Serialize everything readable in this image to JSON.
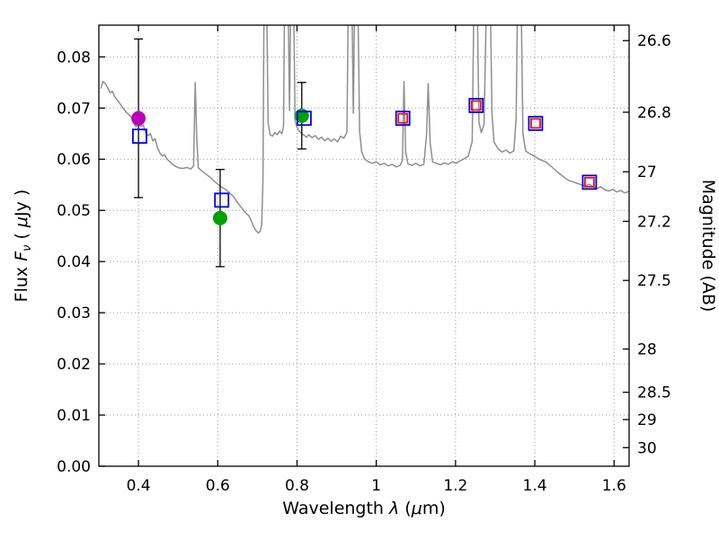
{
  "figure_name": "galaxy-sed-plot",
  "colors": {
    "spectrum": "#8f8f8f",
    "magenta_marker": "#bb00bb",
    "green_marker": "#00a000",
    "blue_square": "#0000ee",
    "red_square": "#ee1111",
    "errorbar": "#000000",
    "grid": "#9a9a9a",
    "frame": "#000000"
  },
  "chart_data": {
    "type": "line",
    "title": "",
    "xlim": [
      0.3,
      1.638
    ],
    "ylim": [
      0.0,
      0.0862
    ],
    "grid": "dotted",
    "xlabel_parts": [
      {
        "t": "Wavelength  ",
        "it": false,
        "sub": false
      },
      {
        "t": "λ",
        "it": true,
        "sub": false
      },
      {
        "t": " (",
        "it": false,
        "sub": false
      },
      {
        "t": "μ",
        "it": true,
        "sub": false
      },
      {
        "t": "m)",
        "it": false,
        "sub": false
      }
    ],
    "ylabel_parts": [
      {
        "t": "Flux  ",
        "it": false,
        "sub": false
      },
      {
        "t": "F",
        "it": true,
        "sub": false
      },
      {
        "t": "ν",
        "it": true,
        "sub": true
      },
      {
        "t": "  ( ",
        "it": false,
        "sub": false
      },
      {
        "t": "μ",
        "it": true,
        "sub": false
      },
      {
        "t": "Jy )",
        "it": false,
        "sub": false
      }
    ],
    "x_ticks": [
      0.4,
      0.6,
      0.8,
      1.0,
      1.2,
      1.4,
      1.6
    ],
    "x_tick_labels": [
      "0.4",
      "0.6",
      "0.8",
      "1",
      "1.2",
      "1.4",
      "1.6"
    ],
    "y_ticks": [
      0.0,
      0.01,
      0.02,
      0.03,
      0.04,
      0.05,
      0.06,
      0.07,
      0.08
    ],
    "y_tick_labels": [
      "0.00",
      "0.01",
      "0.02",
      "0.03",
      "0.04",
      "0.05",
      "0.06",
      "0.07",
      "0.08"
    ],
    "right_axis": {
      "label": "Magnitude (AB)",
      "ab_zeropoint": 23.9,
      "ticks": [
        26.6,
        26.8,
        27.0,
        27.2,
        27.5,
        28.0,
        28.5,
        29.0,
        30.0
      ],
      "tick_labels": [
        "26.6",
        "26.8",
        "27",
        "27.2",
        "27.5",
        "28",
        "28.5",
        "29",
        "30"
      ]
    },
    "series": [
      {
        "name": "model-spectrum",
        "type": "line",
        "color_key": "spectrum",
        "points": [
          [
            0.305,
            0.0738
          ],
          [
            0.31,
            0.0752
          ],
          [
            0.316,
            0.0748
          ],
          [
            0.322,
            0.074
          ],
          [
            0.328,
            0.073
          ],
          [
            0.334,
            0.0733
          ],
          [
            0.34,
            0.0722
          ],
          [
            0.346,
            0.0716
          ],
          [
            0.352,
            0.071
          ],
          [
            0.358,
            0.0703
          ],
          [
            0.364,
            0.0697
          ],
          [
            0.37,
            0.0691
          ],
          [
            0.376,
            0.0687
          ],
          [
            0.382,
            0.0682
          ],
          [
            0.388,
            0.0671
          ],
          [
            0.394,
            0.0663
          ],
          [
            0.4,
            0.0672
          ],
          [
            0.406,
            0.0664
          ],
          [
            0.412,
            0.0667
          ],
          [
            0.418,
            0.0652
          ],
          [
            0.424,
            0.0646
          ],
          [
            0.43,
            0.065
          ],
          [
            0.436,
            0.0636
          ],
          [
            0.442,
            0.064
          ],
          [
            0.448,
            0.0622
          ],
          [
            0.454,
            0.0612
          ],
          [
            0.46,
            0.0606
          ],
          [
            0.466,
            0.0609
          ],
          [
            0.472,
            0.06
          ],
          [
            0.478,
            0.0596
          ],
          [
            0.486,
            0.059
          ],
          [
            0.494,
            0.0586
          ],
          [
            0.502,
            0.0583
          ],
          [
            0.512,
            0.0582
          ],
          [
            0.522,
            0.0584
          ],
          [
            0.532,
            0.0581
          ],
          [
            0.539,
            0.0587
          ],
          [
            0.543,
            0.075
          ],
          [
            0.547,
            0.0642
          ],
          [
            0.551,
            0.0583
          ],
          [
            0.56,
            0.0577
          ],
          [
            0.57,
            0.0571
          ],
          [
            0.58,
            0.0565
          ],
          [
            0.59,
            0.0558
          ],
          [
            0.6,
            0.0551
          ],
          [
            0.61,
            0.0545
          ],
          [
            0.62,
            0.0541
          ],
          [
            0.63,
            0.0534
          ],
          [
            0.64,
            0.0527
          ],
          [
            0.648,
            0.0517
          ],
          [
            0.656,
            0.0509
          ],
          [
            0.664,
            0.0501
          ],
          [
            0.672,
            0.0494
          ],
          [
            0.678,
            0.049
          ],
          [
            0.684,
            0.0481
          ],
          [
            0.69,
            0.0469
          ],
          [
            0.696,
            0.0461
          ],
          [
            0.702,
            0.0456
          ],
          [
            0.707,
            0.0459
          ],
          [
            0.711,
            0.0472
          ],
          [
            0.714,
            0.056
          ],
          [
            0.717,
            0.095
          ],
          [
            0.723,
            0.095
          ],
          [
            0.727,
            0.0672
          ],
          [
            0.732,
            0.0648
          ],
          [
            0.738,
            0.0645
          ],
          [
            0.744,
            0.0652
          ],
          [
            0.75,
            0.0648
          ],
          [
            0.756,
            0.0655
          ],
          [
            0.762,
            0.065
          ],
          [
            0.766,
            0.0665
          ],
          [
            0.769,
            0.095
          ],
          [
            0.777,
            0.095
          ],
          [
            0.781,
            0.0695
          ],
          [
            0.785,
            0.095
          ],
          [
            0.791,
            0.095
          ],
          [
            0.795,
            0.0676
          ],
          [
            0.8,
            0.0662
          ],
          [
            0.806,
            0.0655
          ],
          [
            0.812,
            0.065
          ],
          [
            0.818,
            0.0647
          ],
          [
            0.824,
            0.0643
          ],
          [
            0.83,
            0.0648
          ],
          [
            0.838,
            0.0642
          ],
          [
            0.846,
            0.0646
          ],
          [
            0.854,
            0.0639
          ],
          [
            0.862,
            0.0643
          ],
          [
            0.87,
            0.0636
          ],
          [
            0.878,
            0.0641
          ],
          [
            0.886,
            0.0635
          ],
          [
            0.894,
            0.064
          ],
          [
            0.902,
            0.0634
          ],
          [
            0.91,
            0.0645
          ],
          [
            0.918,
            0.0641
          ],
          [
            0.926,
            0.0652
          ],
          [
            0.93,
            0.095
          ],
          [
            0.938,
            0.095
          ],
          [
            0.942,
            0.069
          ],
          [
            0.946,
            0.095
          ],
          [
            0.953,
            0.095
          ],
          [
            0.958,
            0.0655
          ],
          [
            0.963,
            0.0615
          ],
          [
            0.97,
            0.0601
          ],
          [
            0.98,
            0.0595
          ],
          [
            0.99,
            0.0592
          ],
          [
            1.0,
            0.0595
          ],
          [
            1.01,
            0.0589
          ],
          [
            1.02,
            0.0592
          ],
          [
            1.03,
            0.0587
          ],
          [
            1.04,
            0.059
          ],
          [
            1.05,
            0.0585
          ],
          [
            1.06,
            0.0588
          ],
          [
            1.066,
            0.0598
          ],
          [
            1.07,
            0.0752
          ],
          [
            1.074,
            0.0615
          ],
          [
            1.08,
            0.0591
          ],
          [
            1.09,
            0.0588
          ],
          [
            1.1,
            0.0592
          ],
          [
            1.11,
            0.0587
          ],
          [
            1.12,
            0.059
          ],
          [
            1.127,
            0.065
          ],
          [
            1.131,
            0.0748
          ],
          [
            1.136,
            0.0632
          ],
          [
            1.142,
            0.0595
          ],
          [
            1.152,
            0.0592
          ],
          [
            1.162,
            0.0589
          ],
          [
            1.172,
            0.0593
          ],
          [
            1.182,
            0.059
          ],
          [
            1.192,
            0.0595
          ],
          [
            1.202,
            0.0592
          ],
          [
            1.212,
            0.0597
          ],
          [
            1.222,
            0.0601
          ],
          [
            1.232,
            0.0606
          ],
          [
            1.242,
            0.0635
          ],
          [
            1.247,
            0.095
          ],
          [
            1.254,
            0.095
          ],
          [
            1.259,
            0.0672
          ],
          [
            1.265,
            0.0652
          ],
          [
            1.272,
            0.0668
          ],
          [
            1.279,
            0.095
          ],
          [
            1.287,
            0.095
          ],
          [
            1.292,
            0.069
          ],
          [
            1.297,
            0.0634
          ],
          [
            1.307,
            0.0621
          ],
          [
            1.317,
            0.0614
          ],
          [
            1.327,
            0.0618
          ],
          [
            1.337,
            0.0612
          ],
          [
            1.347,
            0.0616
          ],
          [
            1.353,
            0.068
          ],
          [
            1.357,
            0.095
          ],
          [
            1.365,
            0.095
          ],
          [
            1.37,
            0.065
          ],
          [
            1.377,
            0.0616
          ],
          [
            1.387,
            0.0611
          ],
          [
            1.397,
            0.0607
          ],
          [
            1.407,
            0.0602
          ],
          [
            1.417,
            0.0598
          ],
          [
            1.427,
            0.0595
          ],
          [
            1.437,
            0.0589
          ],
          [
            1.447,
            0.0582
          ],
          [
            1.457,
            0.0575
          ],
          [
            1.467,
            0.0569
          ],
          [
            1.477,
            0.0563
          ],
          [
            1.487,
            0.0558
          ],
          [
            1.497,
            0.0556
          ],
          [
            1.507,
            0.0553
          ],
          [
            1.517,
            0.055
          ],
          [
            1.527,
            0.0548
          ],
          [
            1.537,
            0.0551
          ],
          [
            1.547,
            0.0546
          ],
          [
            1.557,
            0.0543
          ],
          [
            1.567,
            0.0546
          ],
          [
            1.577,
            0.054
          ],
          [
            1.587,
            0.0538
          ],
          [
            1.597,
            0.0541
          ],
          [
            1.607,
            0.0536
          ],
          [
            1.617,
            0.0539
          ],
          [
            1.627,
            0.0534
          ],
          [
            1.637,
            0.0537
          ]
        ]
      },
      {
        "name": "magenta-photometry-circle",
        "type": "scatter-circle",
        "color_key": "magenta_marker",
        "points": [
          {
            "x": 0.4,
            "y": 0.068,
            "yerr": 0.0155
          }
        ]
      },
      {
        "name": "green-photometry-circles",
        "type": "scatter-circle",
        "color_key": "green_marker",
        "points": [
          {
            "x": 0.606,
            "y": 0.0485,
            "yerr": 0.0095
          },
          {
            "x": 0.812,
            "y": 0.0685,
            "yerr": 0.0065
          }
        ]
      },
      {
        "name": "blue-open-squares",
        "type": "scatter-square",
        "color_key": "blue_square",
        "size": 15,
        "points": [
          {
            "x": 0.403,
            "y": 0.0645
          },
          {
            "x": 0.61,
            "y": 0.052
          },
          {
            "x": 0.818,
            "y": 0.068
          },
          {
            "x": 1.067,
            "y": 0.068
          },
          {
            "x": 1.252,
            "y": 0.0705
          },
          {
            "x": 1.402,
            "y": 0.067
          },
          {
            "x": 1.538,
            "y": 0.0555
          }
        ]
      },
      {
        "name": "red-model-squares",
        "type": "scatter-square",
        "color_key": "red_square",
        "size": 10,
        "points": [
          {
            "x": 1.067,
            "y": 0.068
          },
          {
            "x": 1.252,
            "y": 0.0705
          },
          {
            "x": 1.402,
            "y": 0.067
          },
          {
            "x": 1.538,
            "y": 0.0555
          }
        ]
      }
    ]
  }
}
